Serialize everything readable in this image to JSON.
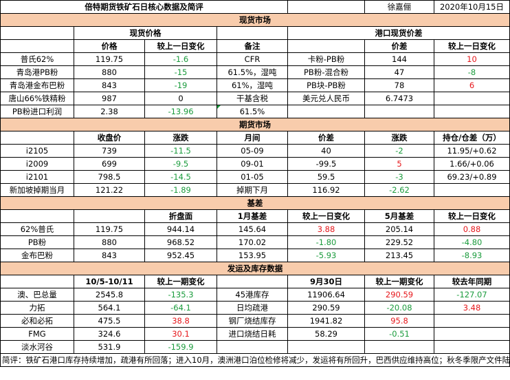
{
  "header": {
    "title": "倍特期货铁矿石日核心数据及简评",
    "author": "徐嘉俪",
    "date": "2020年10月15日"
  },
  "spot": {
    "section_title": "现货市场",
    "left_title": "现货价格",
    "right_title": "港口现货价差",
    "col_price": "价格",
    "col_change": "较上一日变化",
    "col_note": "备注",
    "col_spread": "价差",
    "col_spread_change": "较上一日变化",
    "rows": [
      {
        "name": "普氏62%",
        "price": "119.75",
        "change": "-1.6",
        "note": "CFR",
        "pair": "卡粉-PB粉",
        "spread": "144",
        "spread_change": "10"
      },
      {
        "name": "青岛港PB粉",
        "price": "880",
        "change": "-15",
        "note": "61.5%，湿吨",
        "pair": "PB粉-混合粉",
        "spread": "47",
        "spread_change": "-8"
      },
      {
        "name": "青岛港金布巴粉",
        "price": "843",
        "change": "-19",
        "note": "61%，湿吨",
        "pair": "PB块-PB粉",
        "spread": "78",
        "spread_change": "6"
      },
      {
        "name": "唐山66%铁精粉",
        "price": "987",
        "change": "0",
        "note": "干基含税",
        "pair": "美元兑人民币",
        "spread": "6.7473",
        "spread_change": ""
      },
      {
        "name": "PB粉进口利润",
        "price": "2.38",
        "change": "-13.96",
        "note": "61.5%",
        "pair": "",
        "spread": "",
        "spread_change": ""
      }
    ]
  },
  "futures": {
    "section_title": "期货市场",
    "col_close": "收盘价",
    "col_change": "涨跌",
    "col_month": "月间",
    "col_spread": "价差",
    "col_spread_change": "涨跌",
    "col_oi": "持仓/仓差（万）",
    "rows": [
      {
        "name": "i2105",
        "close": "739",
        "change": "-11.5",
        "month": "05-09",
        "spread": "40",
        "spread_change": "-2",
        "oi": "11.95/+0.62"
      },
      {
        "name": "i2009",
        "close": "699",
        "change": "-9.5",
        "month": "09-01",
        "spread": "-99.5",
        "spread_change": "5",
        "oi": "1.66/+0.06"
      },
      {
        "name": "i2101",
        "close": "798.5",
        "change": "-14.5",
        "month": "01-05",
        "spread": "59.5",
        "spread_change": "-3",
        "oi": "69.23/+0.89"
      }
    ],
    "sgx_label": "新加坡掉期当月",
    "sgx_value": "121.22",
    "sgx_change": "-1.89",
    "next_label": "掉期下月",
    "next_value": "116.92",
    "next_change": "-2.62"
  },
  "basis": {
    "section_title": "基差",
    "col_disk": "折盘面",
    "col_jan": "1月基差",
    "col_jan_change": "较上一日变化",
    "col_may": "5月基差",
    "col_may_change": "较上一日变化",
    "rows": [
      {
        "name": "62%普氏",
        "price": "119.75",
        "disk": "944.14",
        "jan": "145.64",
        "jan_change": "3.88",
        "may": "205.14",
        "may_change": "0.88"
      },
      {
        "name": "PB粉",
        "price": "880",
        "disk": "968.52",
        "jan": "170.02",
        "jan_change": "-1.80",
        "may": "229.52",
        "may_change": "-4.80"
      },
      {
        "name": "金布巴粉",
        "price": "843",
        "disk": "952.45",
        "jan": "153.95",
        "jan_change": "-5.93",
        "may": "213.45",
        "may_change": "-8.93"
      }
    ]
  },
  "shipping": {
    "section_title": "发运及库存数据",
    "col_period": "10/5-10/11",
    "col_change": "较上一期变化",
    "col_date": "9月30日",
    "col_change2": "较上一期变化",
    "col_yoy": "较去年同期",
    "rows": [
      {
        "name": "澳、巴总量",
        "value": "2545.8",
        "change": "-135.3",
        "name2": "45港库存",
        "value2": "11906.64",
        "change2": "290.59",
        "yoy": "-127.07"
      },
      {
        "name": "力拓",
        "value": "564.1",
        "change": "-64.1",
        "name2": "日均疏港",
        "value2": "290.59",
        "change2": "-20.08",
        "yoy": "3.48"
      },
      {
        "name": "必和必拓",
        "value": "475.5",
        "change": "38.8",
        "name2": "钢厂烧结库存",
        "value2": "1941.82",
        "change2": "95.8",
        "yoy": ""
      },
      {
        "name": "FMG",
        "value": "324.6",
        "change": "30.1",
        "name2": "进口烧结日耗",
        "value2": "58.29",
        "change2": "-0.51",
        "yoy": ""
      },
      {
        "name": "淡水河谷",
        "value": "531.9",
        "change": "-159.9",
        "name2": "",
        "value2": "",
        "change2": "",
        "yoy": ""
      }
    ]
  },
  "comment": "简评：铁矿石港口库存持续增加，疏港有所回落；进入10月，澳洲港口泊位检修将减少，发运将有所回升，巴西供应维持高位；秋冬季限产文件陆续发布，持续关注对铁矿需求的影响；钢厂对后续市场不乐观，在铁矿石采购上态度谨慎，矿石现货成交疲软，价格回落明显；短期01铁矿偏弱震荡，空单轻持，关注市场情绪变化。",
  "colors": {
    "section_fill": "#f8ccac",
    "positive": "#e6171b",
    "negative": "#1a9b3c"
  }
}
